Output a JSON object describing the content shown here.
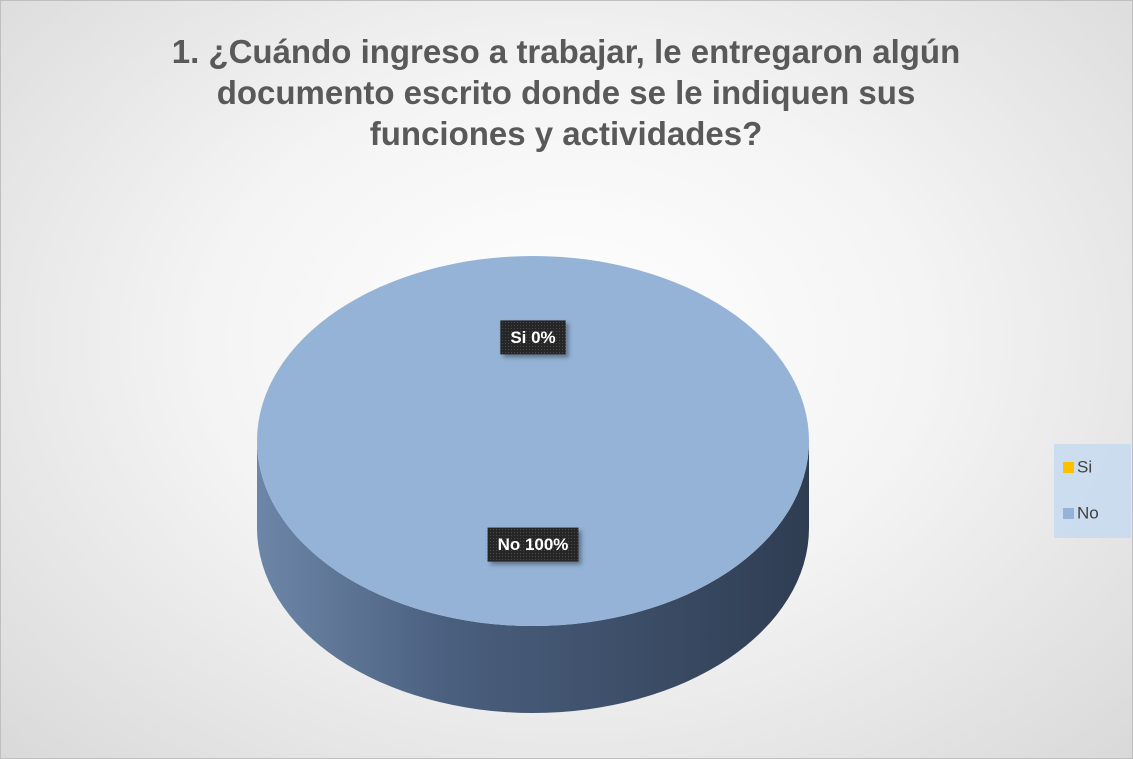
{
  "chart_data": {
    "type": "pie",
    "title": "1. ¿Cuándo ingreso a trabajar, le entregaron algún documento escrito donde se le indiquen sus funciones y actividades?",
    "categories": [
      "Si",
      "No"
    ],
    "values": [
      0,
      100
    ],
    "value_labels": [
      "Si 0%",
      "No 100%"
    ],
    "colors": [
      "#ffc000",
      "#95b3d7"
    ],
    "legend": "right"
  }
}
